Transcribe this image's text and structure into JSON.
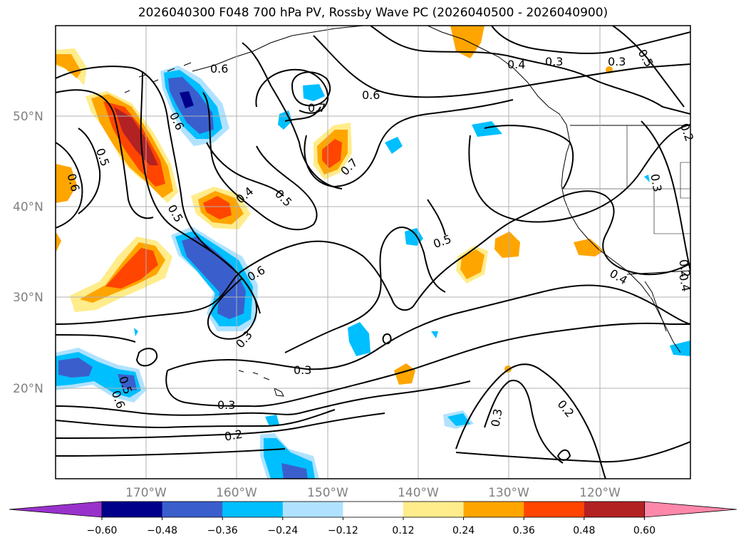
{
  "title": "2026040300 F048 700 hPa PV, Rossby Wave PC (2026040500 - 2026040900)",
  "lat_labels": [
    "50°N",
    "40°N",
    "30°N",
    "20°N"
  ],
  "lon_labels": [
    "170°W",
    "160°W",
    "150°W",
    "140°W",
    "130°W",
    "120°W"
  ],
  "colorbar": {
    "ticks": [
      "−0.60",
      "−0.48",
      "−0.36",
      "−0.24",
      "−0.12",
      "0.12",
      "0.24",
      "0.36",
      "0.48",
      "0.60"
    ],
    "colors": [
      "#9932cc",
      "#00008b",
      "#3a5fcd",
      "#00bfff",
      "#b0e2ff",
      "#ffffff",
      "#ffec8b",
      "#ffa500",
      "#ff4500",
      "#b22222",
      "#ff88aa"
    ]
  },
  "contour_labels": [
    "0.6",
    "0.7",
    "0.6",
    "0.4",
    "0.3",
    "0.3",
    "0.5",
    "0.6",
    "0.5",
    "0.4",
    "0.5",
    "0.7",
    "0.6",
    "0.5",
    "0.5",
    "0.4",
    "0.3",
    "0.3",
    "0.3",
    "0.2",
    "0.3",
    "0.2",
    "0.2",
    "0.3",
    "0.6",
    "0.4",
    "0.2",
    "0.6",
    "0.5"
  ]
}
